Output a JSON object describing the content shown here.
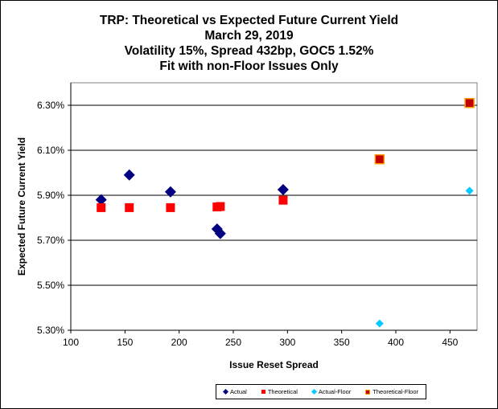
{
  "chart_data": {
    "type": "scatter",
    "title": [
      "TRP: Theoretical vs Expected Future Current Yield",
      "March 29, 2019",
      "Volatility 15%, Spread 432bp, GOC5 1.52%",
      "Fit with non-Floor Issues Only"
    ],
    "xlabel": "Issue Reset Spread",
    "ylabel": "Expected Future Current Yield",
    "xlim": [
      100,
      475
    ],
    "ylim": [
      5.3,
      6.4
    ],
    "x_ticks": [
      100,
      150,
      200,
      250,
      300,
      350,
      400,
      450
    ],
    "y_ticks": [
      5.3,
      5.5,
      5.7,
      5.9,
      6.1,
      6.3
    ],
    "y_tick_labels": [
      "5.30%",
      "5.50%",
      "5.70%",
      "5.90%",
      "6.10%",
      "6.30%"
    ],
    "grid": "horizontal",
    "legend_position": "bottom",
    "series": [
      {
        "name": "Actual",
        "marker": "diamond",
        "color": "#000080",
        "points": [
          [
            128,
            5.88
          ],
          [
            154,
            5.99
          ],
          [
            192,
            5.915
          ],
          [
            235,
            5.75
          ],
          [
            238,
            5.73
          ],
          [
            296,
            5.925
          ]
        ]
      },
      {
        "name": "Theoretical",
        "marker": "square",
        "color": "#ff0000",
        "points": [
          [
            128,
            5.845
          ],
          [
            154,
            5.845
          ],
          [
            192,
            5.845
          ],
          [
            235,
            5.848
          ],
          [
            238,
            5.85
          ],
          [
            296,
            5.878
          ]
        ]
      },
      {
        "name": "Actual-Floor",
        "marker": "diamond",
        "color": "#00ccff",
        "points": [
          [
            385,
            5.33
          ],
          [
            468,
            5.92
          ]
        ]
      },
      {
        "name": "Theoretical-Floor",
        "marker": "square",
        "color": "#c00000",
        "border": "#ff9900",
        "points": [
          [
            385,
            6.06
          ],
          [
            468,
            6.31
          ]
        ]
      }
    ]
  }
}
